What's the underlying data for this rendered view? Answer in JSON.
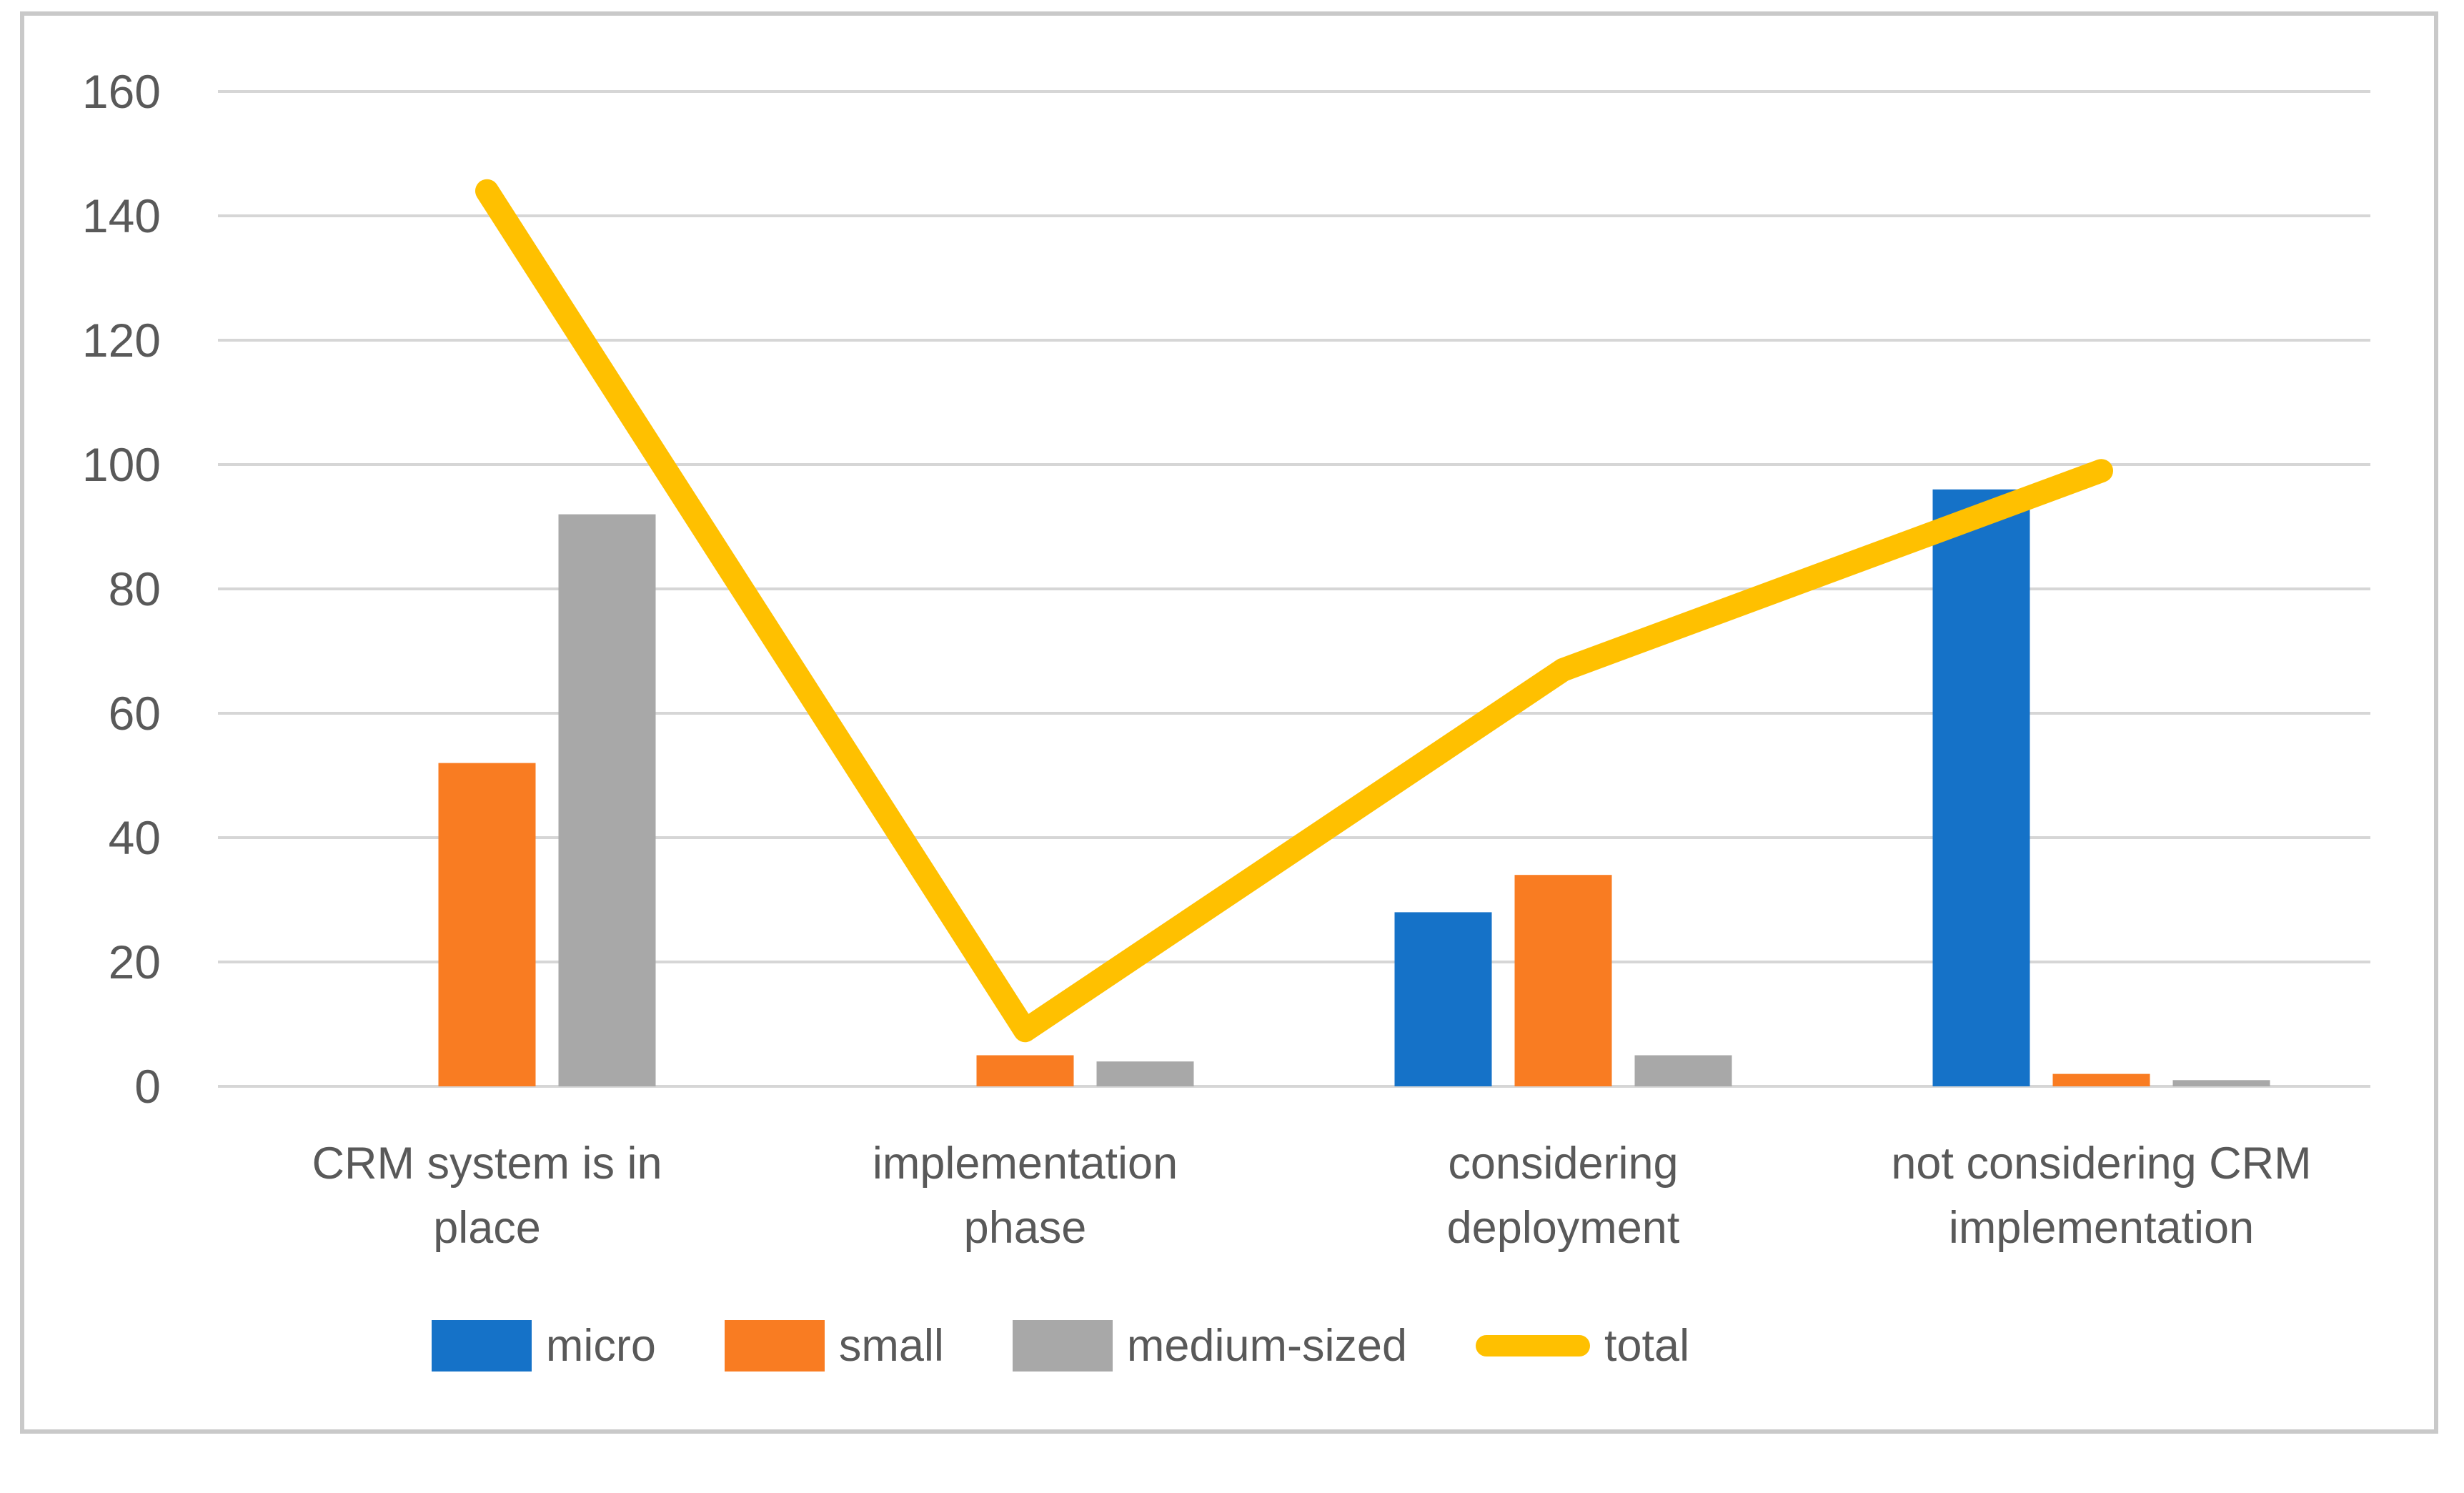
{
  "figure": {
    "background_color": "#FFFFFF",
    "border_color": "#C9C9C9",
    "text_color": "#595959",
    "gridline_color": "#D6D6D6"
  },
  "chart_data": {
    "type": "combo",
    "title": "",
    "xlabel": "",
    "ylabel": "",
    "categories": [
      "CRM system is in\nplace",
      "implementation\nphase",
      "considering\ndeployment",
      "not considering CRM\nimplementation"
    ],
    "series": [
      {
        "name": "micro",
        "type": "bar",
        "color": "#1572C8",
        "values": [
          0,
          0,
          28,
          96
        ]
      },
      {
        "name": "small",
        "type": "bar",
        "color": "#F97C22",
        "values": [
          52,
          5,
          34,
          2
        ]
      },
      {
        "name": "medium-sized",
        "type": "bar",
        "color": "#A8A8A8",
        "values": [
          92,
          4,
          5,
          1
        ]
      },
      {
        "name": "total",
        "type": "line",
        "color": "#FFC000",
        "values": [
          144,
          9,
          67,
          99
        ]
      }
    ],
    "ylim": [
      0,
      160
    ],
    "ytick_step": 20,
    "yticks": [
      0,
      20,
      40,
      60,
      80,
      100,
      120,
      140,
      160
    ],
    "grid": true,
    "legend_position": "bottom"
  }
}
